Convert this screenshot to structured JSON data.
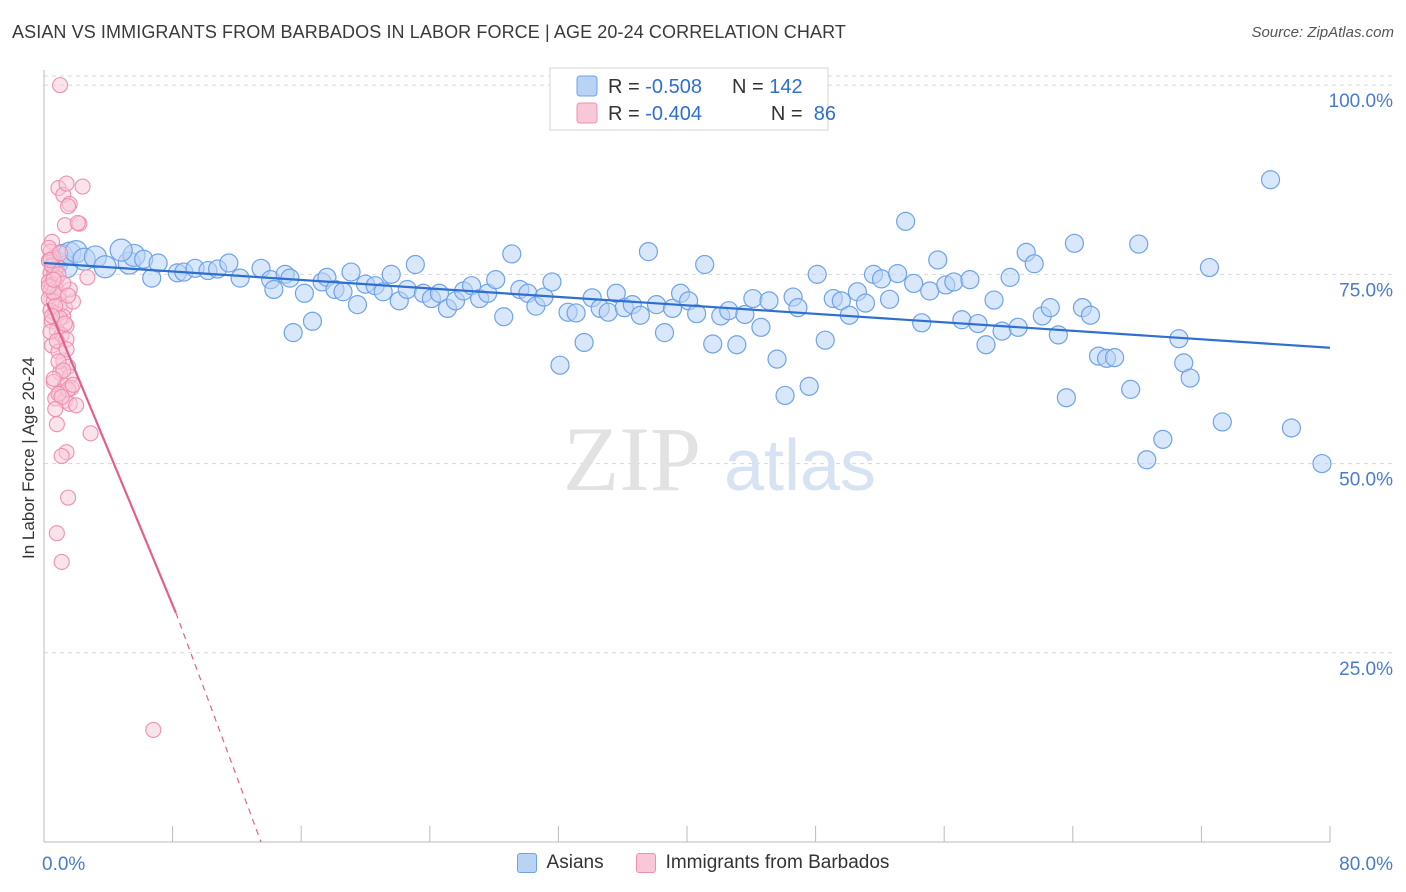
{
  "title": "ASIAN VS IMMIGRANTS FROM BARBADOS IN LABOR FORCE | AGE 20-24 CORRELATION CHART",
  "source": "Source: ZipAtlas.com",
  "watermark": {
    "zip": "ZIP",
    "atlas": "atlas"
  },
  "colors": {
    "asian": "#6fa3e8",
    "asian_fill": "#b9d3f5",
    "asian_line": "#2e6fd0",
    "barbados": "#ef8fb0",
    "barbados_fill": "#f8c7d8",
    "barbados_line": "#e0608f",
    "tick_text": "#4a7bd0",
    "grid": "#d8d8d8"
  },
  "legend_top": [
    {
      "r_label": "R = ",
      "r_value": "-0.508",
      "n_label": "N = ",
      "n_value": "142"
    },
    {
      "r_label": "R = ",
      "r_value": "-0.404",
      "n_label": "N = ",
      "n_value": " 86"
    }
  ],
  "chart_data": {
    "type": "scatter",
    "title": "ASIAN VS IMMIGRANTS FROM BARBADOS IN LABOR FORCE | AGE 20-24 CORRELATION CHART",
    "xlabel": "",
    "ylabel": "In Labor Force | Age 20-24",
    "xlim": [
      0,
      80
    ],
    "ylim": [
      0,
      102
    ],
    "x_tick_labels": [
      "0.0%",
      "80.0%"
    ],
    "y_ticks": [
      25,
      50,
      75,
      100
    ],
    "y_tick_labels": [
      "25.0%",
      "50.0%",
      "75.0%",
      "100.0%"
    ],
    "grid": true,
    "legend_position": "bottom",
    "series": [
      {
        "name": "Asians",
        "points": [
          [
            0.8,
            76.5
          ],
          [
            1.1,
            77.5
          ],
          [
            1.4,
            76
          ],
          [
            1.6,
            77.8
          ],
          [
            2.0,
            78
          ],
          [
            2.5,
            77
          ],
          [
            3.2,
            77.3
          ],
          [
            3.8,
            76
          ],
          [
            5.3,
            76.5
          ],
          [
            5.6,
            77.5
          ],
          [
            4.8,
            78.2
          ],
          [
            6.2,
            77
          ],
          [
            6.7,
            74.5
          ],
          [
            7.1,
            76.5
          ],
          [
            8.3,
            75.2
          ],
          [
            8.7,
            75.3
          ],
          [
            9.4,
            75.8
          ],
          [
            10.2,
            75.5
          ],
          [
            10.8,
            75.7
          ],
          [
            11.5,
            76.5
          ],
          [
            12.2,
            74.5
          ],
          [
            13.5,
            75.8
          ],
          [
            14.1,
            74.3
          ],
          [
            14.3,
            73
          ],
          [
            15.0,
            75
          ],
          [
            15.3,
            74.5
          ],
          [
            15.5,
            67.3
          ],
          [
            16.2,
            72.5
          ],
          [
            16.7,
            68.8
          ],
          [
            17.3,
            74
          ],
          [
            17.6,
            74.6
          ],
          [
            18.1,
            73
          ],
          [
            18.6,
            72.7
          ],
          [
            19.1,
            75.3
          ],
          [
            19.5,
            71
          ],
          [
            20.0,
            73.7
          ],
          [
            20.6,
            73.5
          ],
          [
            21.1,
            72.7
          ],
          [
            21.6,
            75
          ],
          [
            22.1,
            71.5
          ],
          [
            22.6,
            73
          ],
          [
            23.1,
            76.3
          ],
          [
            23.6,
            72.5
          ],
          [
            24.1,
            71.8
          ],
          [
            24.6,
            72.5
          ],
          [
            25.1,
            70.5
          ],
          [
            25.6,
            71.5
          ],
          [
            26.1,
            72.8
          ],
          [
            26.6,
            73.5
          ],
          [
            27.1,
            71.8
          ],
          [
            27.6,
            72.5
          ],
          [
            28.1,
            74.3
          ],
          [
            28.6,
            69.4
          ],
          [
            29.1,
            77.7
          ],
          [
            29.6,
            73
          ],
          [
            30.1,
            72.5
          ],
          [
            30.6,
            70.8
          ],
          [
            31.1,
            72
          ],
          [
            31.6,
            74
          ],
          [
            32.1,
            63
          ],
          [
            32.6,
            70
          ],
          [
            33.1,
            69.9
          ],
          [
            33.6,
            66
          ],
          [
            34.1,
            71.9
          ],
          [
            34.6,
            70.5
          ],
          [
            35.1,
            70
          ],
          [
            35.6,
            72.5
          ],
          [
            36.1,
            70.6
          ],
          [
            36.6,
            71
          ],
          [
            37.1,
            69.6
          ],
          [
            37.6,
            78
          ],
          [
            38.1,
            71
          ],
          [
            38.6,
            67.3
          ],
          [
            39.1,
            70.5
          ],
          [
            39.6,
            72.5
          ],
          [
            40.1,
            71.5
          ],
          [
            40.6,
            69.8
          ],
          [
            41.1,
            76.3
          ],
          [
            41.6,
            65.8
          ],
          [
            42.1,
            69.5
          ],
          [
            42.6,
            70.2
          ],
          [
            43.1,
            65.7
          ],
          [
            43.6,
            69.7
          ],
          [
            44.1,
            71.8
          ],
          [
            44.6,
            68
          ],
          [
            45.1,
            71.5
          ],
          [
            45.6,
            63.8
          ],
          [
            46.1,
            59
          ],
          [
            46.6,
            72
          ],
          [
            46.9,
            70.6
          ],
          [
            47.6,
            60.2
          ],
          [
            48.1,
            75
          ],
          [
            48.6,
            66.3
          ],
          [
            49.1,
            71.8
          ],
          [
            49.6,
            71.5
          ],
          [
            50.1,
            69.6
          ],
          [
            50.6,
            72.7
          ],
          [
            51.1,
            71.2
          ],
          [
            51.6,
            75
          ],
          [
            52.1,
            74.4
          ],
          [
            52.6,
            71.7
          ],
          [
            53.1,
            75.1
          ],
          [
            53.6,
            82
          ],
          [
            54.1,
            73.8
          ],
          [
            54.6,
            68.6
          ],
          [
            55.1,
            72.8
          ],
          [
            55.6,
            76.9
          ],
          [
            56.1,
            73.6
          ],
          [
            56.6,
            74
          ],
          [
            57.1,
            69
          ],
          [
            57.6,
            74.3
          ],
          [
            58.1,
            68.5
          ],
          [
            58.6,
            65.7
          ],
          [
            59.1,
            71.6
          ],
          [
            59.6,
            67.5
          ],
          [
            60.1,
            74.6
          ],
          [
            60.6,
            68
          ],
          [
            61.1,
            77.9
          ],
          [
            61.6,
            76.4
          ],
          [
            62.1,
            69.5
          ],
          [
            62.6,
            70.6
          ],
          [
            63.1,
            67
          ],
          [
            63.6,
            58.7
          ],
          [
            64.1,
            79.1
          ],
          [
            64.6,
            70.6
          ],
          [
            65.1,
            69.6
          ],
          [
            65.6,
            64.2
          ],
          [
            66.1,
            63.9
          ],
          [
            66.6,
            64
          ],
          [
            67.6,
            59.8
          ],
          [
            68.1,
            79
          ],
          [
            68.6,
            50.5
          ],
          [
            69.6,
            53.2
          ],
          [
            70.6,
            66.5
          ],
          [
            70.9,
            63.3
          ],
          [
            71.3,
            61.3
          ],
          [
            72.5,
            75.9
          ],
          [
            73.3,
            55.5
          ],
          [
            76.3,
            87.5
          ],
          [
            77.6,
            54.7
          ],
          [
            79.5,
            50
          ]
        ],
        "trend": [
          [
            0,
            76.5
          ],
          [
            80,
            65.3
          ]
        ]
      },
      {
        "name": "Immigrants from Barbados",
        "points": [
          [
            1.0,
            100
          ],
          [
            0.9,
            86.4
          ],
          [
            1.2,
            85.5
          ],
          [
            1.4,
            87
          ],
          [
            1.6,
            84.3
          ],
          [
            2.4,
            86.6
          ],
          [
            1.3,
            81.5
          ],
          [
            2.2,
            81.7
          ],
          [
            0.5,
            79.3
          ],
          [
            0.4,
            78
          ],
          [
            0.6,
            77.2
          ],
          [
            0.3,
            76.8
          ],
          [
            0.5,
            76
          ],
          [
            0.7,
            75.7
          ],
          [
            0.4,
            75.2
          ],
          [
            0.6,
            74.8
          ],
          [
            0.8,
            74.5
          ],
          [
            0.3,
            74
          ],
          [
            0.5,
            73.6
          ],
          [
            0.7,
            73.2
          ],
          [
            0.4,
            72.8
          ],
          [
            0.9,
            72.4
          ],
          [
            0.3,
            71.8
          ],
          [
            0.6,
            71.4
          ],
          [
            1.0,
            71
          ],
          [
            1.3,
            70.6
          ],
          [
            0.4,
            70.2
          ],
          [
            0.7,
            69.8
          ],
          [
            1.2,
            69.4
          ],
          [
            0.5,
            68.8
          ],
          [
            1.4,
            68.2
          ],
          [
            0.8,
            67.6
          ],
          [
            1.1,
            67
          ],
          [
            1.4,
            66.4
          ],
          [
            0.5,
            65.6
          ],
          [
            0.9,
            64.8
          ],
          [
            1.2,
            63.6
          ],
          [
            1.5,
            62.8
          ],
          [
            1.0,
            62
          ],
          [
            1.6,
            61.5
          ],
          [
            0.6,
            60.8
          ],
          [
            1.3,
            60.3
          ],
          [
            1.7,
            60
          ],
          [
            1.0,
            59.4
          ],
          [
            0.7,
            58.6
          ],
          [
            1.3,
            58.3
          ],
          [
            1.6,
            57.9
          ],
          [
            2.0,
            57.7
          ],
          [
            0.8,
            55.2
          ],
          [
            2.9,
            54
          ],
          [
            1.4,
            51.5
          ],
          [
            1.1,
            51
          ],
          [
            1.5,
            45.5
          ],
          [
            0.8,
            40.8
          ],
          [
            1.1,
            37
          ],
          [
            2.7,
            74.6
          ],
          [
            1.8,
            71.4
          ],
          [
            1.6,
            73
          ],
          [
            1.5,
            84
          ],
          [
            2.1,
            81.8
          ],
          [
            0.3,
            78.5
          ],
          [
            0.5,
            76.2
          ],
          [
            0.9,
            75
          ],
          [
            1.2,
            73.8
          ],
          [
            0.6,
            72.6
          ],
          [
            1.5,
            72.2
          ],
          [
            0.7,
            70.8
          ],
          [
            1.0,
            69.2
          ],
          [
            1.3,
            68.5
          ],
          [
            0.4,
            67.4
          ],
          [
            0.8,
            66.2
          ],
          [
            1.4,
            65.1
          ],
          [
            0.9,
            63.5
          ],
          [
            1.2,
            62.3
          ],
          [
            0.6,
            61.2
          ],
          [
            1.5,
            59.8
          ],
          [
            0.9,
            59.2
          ],
          [
            1.8,
            60.4
          ],
          [
            1.1,
            58.8
          ],
          [
            0.7,
            57.2
          ],
          [
            0.5,
            69.5
          ],
          [
            0.3,
            73.4
          ],
          [
            0.6,
            74.3
          ],
          [
            0.4,
            76.9
          ],
          [
            1.0,
            77.8
          ],
          [
            6.8,
            14.8
          ]
        ],
        "trend": [
          [
            0.2,
            71.2
          ],
          [
            8.2,
            30.3
          ]
        ],
        "trend_dashed": [
          [
            8.2,
            30.3
          ],
          [
            13.5,
            0
          ]
        ]
      }
    ]
  },
  "legend_bottom": [
    {
      "label": "Asians"
    },
    {
      "label": "Immigrants from Barbados"
    }
  ]
}
